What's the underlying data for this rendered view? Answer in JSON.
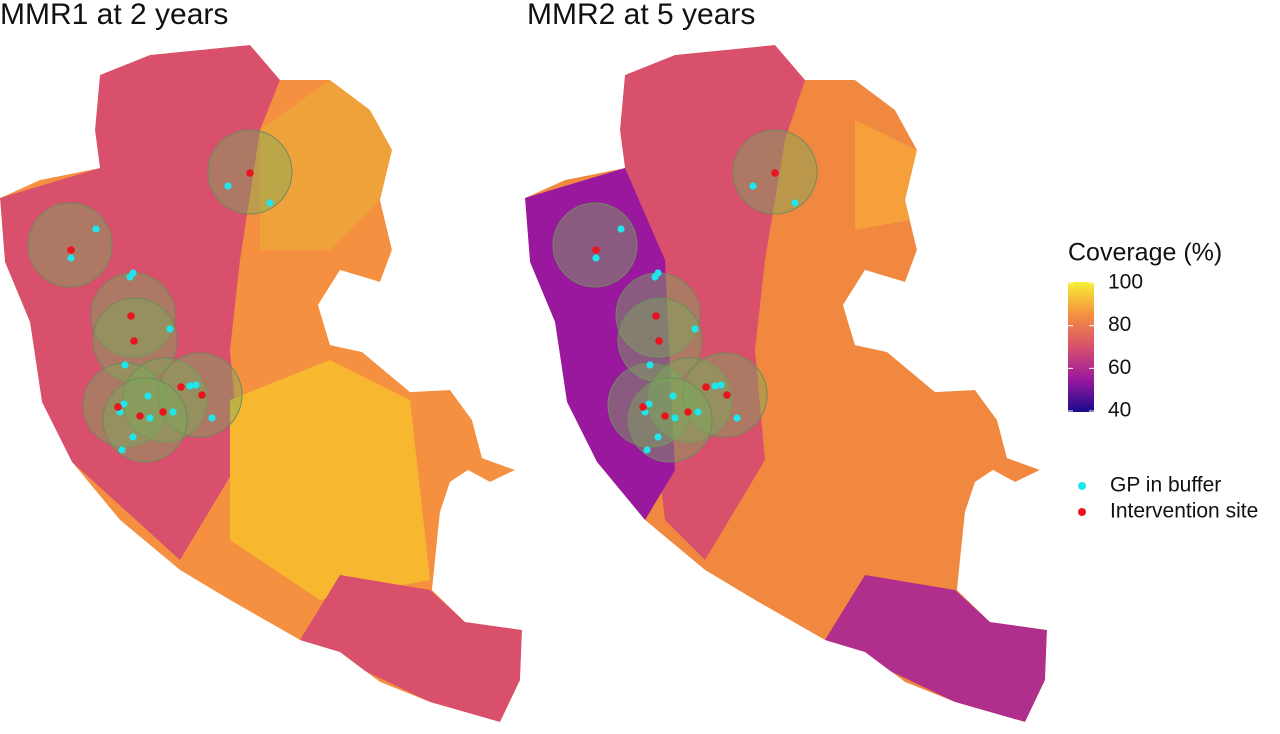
{
  "panels": [
    {
      "title": "MMR1 at 2 years"
    },
    {
      "title": "MMR2 at 5 years"
    }
  ],
  "legend": {
    "title": "Coverage (%)",
    "lim": [
      40,
      100
    ],
    "ticks": [
      40,
      60,
      80,
      100
    ],
    "colors": [
      "#1a0a8c",
      "#9a189e",
      "#d8506c",
      "#f59040",
      "#f6f034"
    ]
  },
  "point_legend": [
    {
      "label": "GP in buffer",
      "color": "#1ee6ec"
    },
    {
      "label": "Intervention site",
      "color": "#e8141e"
    }
  ]
}
